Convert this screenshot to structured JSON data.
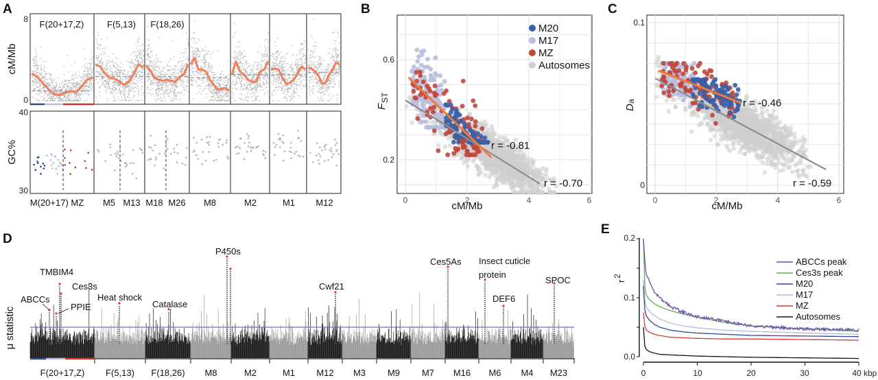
{
  "panels": {
    "A": "A",
    "B": "B",
    "C": "C",
    "D": "D",
    "E": "E"
  },
  "chart_data": [
    {
      "panel": "A",
      "type": "scatter",
      "top": {
        "ylabel": "cM/Mb",
        "ylim": [
          0,
          8
        ],
        "yticks": [
          "0",
          "8"
        ],
        "group_labels": [
          "F(20+17,Z)",
          "F(5,13)",
          "F(18,26)"
        ],
        "segments": [
          {
            "mean": 0.9,
            "smooth": [
              2.6,
              2.3,
              1.7,
              1.1,
              0.6,
              0.5,
              0.7,
              0.9,
              0.8,
              1.3,
              2.0,
              2.2
            ]
          },
          {
            "mean": 2.3,
            "smooth": [
              3.5,
              3.3,
              2.6,
              2.2,
              2.1,
              1.8,
              1.5,
              1.8,
              2.6,
              3.5,
              3.2
            ]
          },
          {
            "mean": 2.3,
            "smooth": [
              3.4,
              2.9,
              2.2,
              2.0,
              1.9,
              2.0,
              1.9,
              1.8,
              2.3,
              2.5,
              3.5
            ]
          },
          {
            "mean": 2.2,
            "smooth": [
              3.5,
              4.2,
              3.0,
              3.0,
              2.8,
              2.0,
              1.5,
              1.0,
              1.1,
              1.2,
              0.9
            ]
          },
          {
            "mean": 2.5,
            "smooth": [
              2.5,
              3.8,
              2.8,
              2.5,
              2.0,
              1.8,
              1.8,
              2.8,
              3.0,
              3.8
            ]
          },
          {
            "mean": 2.5,
            "smooth": [
              3.0,
              3.1,
              3.0,
              2.2,
              1.6,
              1.7,
              2.0,
              2.6,
              3.3,
              3.0
            ]
          },
          {
            "mean": 2.7,
            "smooth": [
              3.2,
              3.1,
              2.8,
              2.4,
              1.6,
              1.7,
              2.5,
              3.0,
              3.7,
              3.5
            ]
          }
        ]
      },
      "bottom": {
        "ylabel": "GC%",
        "ylim": [
          30,
          40
        ],
        "yticks": [
          "30",
          "40"
        ],
        "segment_gc_means": [
          33.5,
          34.5,
          34.8,
          35.0,
          35.6,
          35.5,
          35.2
        ]
      },
      "x_labels": [
        "M(20+17) MZ",
        "M5",
        "M13",
        "M18",
        "M26",
        "M8",
        "M2",
        "M1",
        "M12"
      ],
      "colors": {
        "M20": "#2e4a8c",
        "M17": "#b9bedd",
        "MZ": "#c8362c",
        "smooth": "#f07f5a",
        "points": "#b5b5b5",
        "mean": "#7a8796"
      }
    },
    {
      "panel": "B",
      "type": "scatter",
      "xlabel": "cM/Mb",
      "ylabel": "F",
      "ylabel_sub": "ST",
      "xticks": [
        "0",
        "2",
        "4",
        "6"
      ],
      "yticks": [
        "0.2",
        "0.6"
      ],
      "grid": true,
      "legend": {
        "position": "top-right",
        "entries": [
          "M20",
          "M17",
          "MZ",
          "Autosomes"
        ]
      },
      "series": [
        {
          "name": "M20",
          "color": "#3a5fa6",
          "x_range": [
            1.3,
            2.7
          ],
          "y_range": [
            0.27,
            0.42
          ]
        },
        {
          "name": "M17",
          "color": "#b9bedf",
          "x_range": [
            0.2,
            1.3
          ],
          "y_range": [
            0.33,
            0.72
          ]
        },
        {
          "name": "MZ",
          "color": "#c0463a",
          "x_range": [
            0.2,
            2.5
          ],
          "y_range": [
            0.22,
            0.55
          ]
        },
        {
          "name": "Autosomes",
          "color": "#cfcfcf",
          "x_range": [
            0,
            5
          ],
          "y_range": [
            0.07,
            0.6
          ]
        }
      ],
      "fits": [
        {
          "label": "r = -0.81",
          "color": "#f07a3a",
          "x": [
            0.1,
            2.78
          ],
          "y": [
            0.529,
            0.21
          ]
        },
        {
          "label": "r = -0.70",
          "color": "#8c8c8c",
          "x": [
            0.0,
            4.36
          ],
          "y": [
            0.438,
            0.104
          ]
        }
      ]
    },
    {
      "panel": "C",
      "type": "scatter",
      "xlabel": "cM/Mb",
      "ylabel": "D",
      "ylabel_sub": "a",
      "xticks": [
        "0",
        "2",
        "4",
        "6"
      ],
      "yticks": [
        "0",
        "0.1"
      ],
      "grid": true,
      "series": [
        {
          "name": "M20",
          "color": "#3a5fa6",
          "x_range": [
            1.2,
            2.8
          ],
          "y_range": [
            0.042,
            0.065
          ]
        },
        {
          "name": "M17",
          "color": "#b9bedf",
          "x_range": [
            0.2,
            1.3
          ],
          "y_range": [
            0.045,
            0.075
          ]
        },
        {
          "name": "MZ",
          "color": "#c0463a",
          "x_range": [
            0.2,
            2.6
          ],
          "y_range": [
            0.038,
            0.075
          ]
        },
        {
          "name": "Autosomes",
          "color": "#cfcfcf",
          "x_range": [
            0,
            5.5
          ],
          "y_range": [
            0.005,
            0.095
          ]
        }
      ],
      "fits": [
        {
          "label": "r = -0.46",
          "color": "#f07a3a",
          "x": [
            0.11,
            2.8
          ],
          "y": [
            0.0705,
            0.0506
          ]
        },
        {
          "label": "r = -0.59",
          "color": "#8c8c8c",
          "x": [
            0.0,
            5.57
          ],
          "y": [
            0.0658,
            0.0097
          ]
        }
      ]
    },
    {
      "panel": "D",
      "type": "bar",
      "ylabel": "μ statistic",
      "categories": [
        "F(20+17,Z)",
        "F(5,13)",
        "F(18,26)",
        "M8",
        "M2",
        "M1",
        "M12",
        "M3",
        "M9",
        "M7",
        "M16",
        "M6",
        "M4",
        "M23"
      ],
      "colors": {
        "dark": "#1a1a1a",
        "light": "#9a9a9a",
        "threshold": "#6f6fc8",
        "peak": "#e0302a"
      },
      "annotations": [
        "TMBIM4",
        "Ces3s",
        "ABCCs",
        "PPIE",
        "Heat shock",
        "Catalase",
        "P450s",
        "Cwf21",
        "Ces5As",
        "Insect cuticle",
        "protein",
        "DEF6",
        "SPOC"
      ]
    },
    {
      "panel": "E",
      "type": "line",
      "xlabel": "kbp",
      "ylabel": "r",
      "ylabel_sup": "2",
      "xticks": [
        "0",
        "10",
        "20",
        "30",
        "40"
      ],
      "yticks": [
        "0.0",
        "0.1",
        "0.2"
      ],
      "xlim": [
        0,
        40
      ],
      "ylim": [
        0,
        0.2
      ],
      "legend": {
        "position": "right"
      },
      "x": [
        0,
        0.1,
        0.25,
        0.5,
        1,
        2,
        3,
        5,
        7.5,
        10,
        15,
        20,
        30,
        40
      ],
      "series": [
        {
          "name": "ABCCs peak",
          "color": "#6a4fb0",
          "values": [
            0.2,
            0.185,
            0.165,
            0.14,
            0.13,
            0.11,
            0.1,
            0.085,
            0.075,
            0.068,
            0.06,
            0.052,
            0.047,
            0.045
          ]
        },
        {
          "name": "Ces3s peak",
          "color": "#5bb04a",
          "values": [
            0.2,
            0.15,
            0.12,
            0.105,
            0.098,
            0.09,
            0.085,
            0.078,
            0.072,
            0.067,
            0.058,
            0.052,
            0.047,
            0.043
          ]
        },
        {
          "name": "M20",
          "color": "#2b4a94",
          "values": [
            0.12,
            0.095,
            0.08,
            0.07,
            0.063,
            0.055,
            0.05,
            0.045,
            0.042,
            0.04,
            0.038,
            0.036,
            0.035,
            0.034
          ]
        },
        {
          "name": "M17",
          "color": "#b4b8d8",
          "values": [
            0.13,
            0.11,
            0.095,
            0.085,
            0.078,
            0.07,
            0.064,
            0.057,
            0.052,
            0.049,
            0.045,
            0.043,
            0.04,
            0.038
          ]
        },
        {
          "name": "MZ",
          "color": "#d83a32",
          "values": [
            0.075,
            0.06,
            0.052,
            0.046,
            0.042,
            0.038,
            0.036,
            0.033,
            0.032,
            0.031,
            0.03,
            0.03,
            0.029,
            0.028
          ]
        },
        {
          "name": "Autosomes",
          "color": "#111111",
          "values": [
            0.05,
            0.025,
            0.018,
            0.013,
            0.009,
            0.006,
            0.004,
            0.003,
            0.002,
            0.001,
            0.0,
            -0.001,
            -0.002,
            -0.003
          ]
        }
      ]
    }
  ]
}
